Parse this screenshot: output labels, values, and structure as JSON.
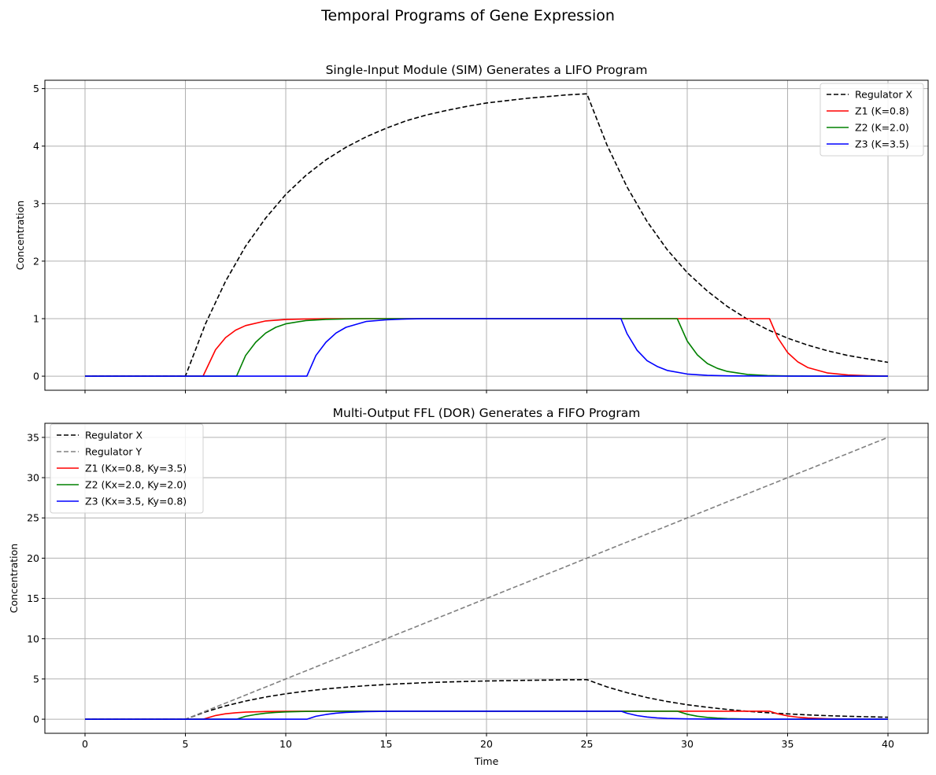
{
  "figure": {
    "title": "Temporal Programs of Gene Expression"
  },
  "chart_data": [
    {
      "type": "line",
      "title": "Single-Input Module (SIM) Generates a LIFO Program",
      "xlabel": "",
      "ylabel": "Concentration",
      "xlim": [
        -2,
        42
      ],
      "ylim": [
        -0.245,
        5.145
      ],
      "xticks": [
        0,
        5,
        10,
        15,
        20,
        25,
        30,
        35,
        40
      ],
      "yticks": [
        0,
        1,
        2,
        3,
        4,
        5
      ],
      "show_xticklabels": false,
      "grid": true,
      "legend_position": "upper right",
      "series": [
        {
          "name": "Regulator X",
          "color": "#000000",
          "dash": "dashed",
          "x": [
            0,
            5,
            6,
            7,
            8,
            9,
            10,
            11,
            12,
            13,
            14,
            15,
            16,
            17,
            18,
            19,
            20,
            21,
            22,
            23,
            24,
            25,
            26,
            27,
            28,
            29,
            30,
            31,
            32,
            33,
            34,
            35,
            36,
            37,
            38,
            39,
            40
          ],
          "y": [
            0,
            0,
            0.91,
            1.65,
            2.26,
            2.75,
            3.16,
            3.49,
            3.76,
            3.98,
            4.16,
            4.31,
            4.44,
            4.54,
            4.62,
            4.69,
            4.75,
            4.79,
            4.83,
            4.86,
            4.89,
            4.91,
            4.02,
            3.29,
            2.69,
            2.2,
            1.8,
            1.48,
            1.21,
            0.99,
            0.81,
            0.66,
            0.54,
            0.44,
            0.36,
            0.3,
            0.24
          ]
        },
        {
          "name": "Z1 (K=0.8)",
          "color": "#ff0000",
          "dash": "solid",
          "x": [
            0,
            5.88,
            6.5,
            7,
            7.5,
            8,
            9,
            10,
            11,
            12,
            34.1,
            34.5,
            35,
            35.5,
            36,
            37,
            38,
            39,
            40
          ],
          "y": [
            0,
            0,
            0.46,
            0.67,
            0.8,
            0.88,
            0.96,
            0.985,
            0.995,
            1,
            1,
            0.67,
            0.41,
            0.25,
            0.15,
            0.055,
            0.02,
            0.008,
            0.003
          ]
        },
        {
          "name": "Z2 (K=2.0)",
          "color": "#008000",
          "dash": "solid",
          "x": [
            0,
            7.55,
            8,
            8.5,
            9,
            9.5,
            10,
            11,
            12,
            13,
            14,
            29.5,
            30,
            30.5,
            31,
            31.5,
            32,
            33,
            34,
            35,
            36,
            40
          ],
          "y": [
            0,
            0,
            0.36,
            0.59,
            0.75,
            0.85,
            0.91,
            0.967,
            0.988,
            0.996,
            1,
            1,
            0.61,
            0.37,
            0.22,
            0.135,
            0.082,
            0.03,
            0.011,
            0.004,
            0.002,
            0
          ]
        },
        {
          "name": "Z3 (K=3.5)",
          "color": "#0000ff",
          "dash": "solid",
          "x": [
            0,
            11.05,
            11.5,
            12,
            12.5,
            13,
            14,
            15,
            16,
            17,
            26.7,
            27,
            27.5,
            28,
            28.5,
            29,
            30,
            31,
            32,
            34,
            40
          ],
          "y": [
            0,
            0,
            0.36,
            0.59,
            0.75,
            0.85,
            0.95,
            0.98,
            0.995,
            1,
            1,
            0.74,
            0.45,
            0.27,
            0.17,
            0.1,
            0.037,
            0.014,
            0.005,
            0.001,
            0
          ]
        }
      ]
    },
    {
      "type": "line",
      "title": "Multi-Output FFL (DOR) Generates a FIFO Program",
      "xlabel": "Time",
      "ylabel": "Concentration",
      "xlim": [
        -2,
        42
      ],
      "ylim": [
        -1.75,
        36.75
      ],
      "xticks": [
        0,
        5,
        10,
        15,
        20,
        25,
        30,
        35,
        40
      ],
      "yticks": [
        0,
        5,
        10,
        15,
        20,
        25,
        30,
        35
      ],
      "show_xticklabels": true,
      "grid": true,
      "legend_position": "upper left",
      "series": [
        {
          "name": "Regulator X",
          "color": "#000000",
          "dash": "dashed",
          "x": [
            0,
            5,
            6,
            7,
            8,
            9,
            10,
            11,
            12,
            13,
            14,
            15,
            16,
            17,
            18,
            19,
            20,
            21,
            22,
            23,
            24,
            25,
            26,
            27,
            28,
            29,
            30,
            31,
            32,
            33,
            34,
            35,
            36,
            37,
            38,
            39,
            40
          ],
          "y": [
            0,
            0,
            0.91,
            1.65,
            2.26,
            2.75,
            3.16,
            3.49,
            3.76,
            3.98,
            4.16,
            4.31,
            4.44,
            4.54,
            4.62,
            4.69,
            4.75,
            4.79,
            4.83,
            4.86,
            4.89,
            4.91,
            4.02,
            3.29,
            2.69,
            2.2,
            1.8,
            1.48,
            1.21,
            0.99,
            0.81,
            0.66,
            0.54,
            0.44,
            0.36,
            0.3,
            0.24
          ]
        },
        {
          "name": "Regulator Y",
          "color": "#808080",
          "dash": "dashed",
          "x": [
            0,
            5,
            40
          ],
          "y": [
            0,
            0,
            35
          ]
        },
        {
          "name": "Z1 (Kx=0.8, Ky=3.5)",
          "color": "#ff0000",
          "dash": "solid",
          "x": [
            0,
            5.88,
            6.5,
            7,
            7.5,
            8,
            9,
            10,
            11,
            12,
            34.1,
            34.5,
            35,
            35.5,
            36,
            37,
            38,
            39,
            40
          ],
          "y": [
            0,
            0,
            0.46,
            0.67,
            0.8,
            0.88,
            0.96,
            0.985,
            0.995,
            1,
            1,
            0.67,
            0.41,
            0.25,
            0.15,
            0.055,
            0.02,
            0.008,
            0.003
          ]
        },
        {
          "name": "Z2 (Kx=2.0, Ky=2.0)",
          "color": "#008000",
          "dash": "solid",
          "x": [
            0,
            7.55,
            8,
            8.5,
            9,
            9.5,
            10,
            11,
            12,
            13,
            14,
            29.5,
            30,
            30.5,
            31,
            31.5,
            32,
            33,
            34,
            35,
            36,
            40
          ],
          "y": [
            0,
            0,
            0.36,
            0.59,
            0.75,
            0.85,
            0.91,
            0.967,
            0.988,
            0.996,
            1,
            1,
            0.61,
            0.37,
            0.22,
            0.135,
            0.082,
            0.03,
            0.011,
            0.004,
            0.002,
            0
          ]
        },
        {
          "name": "Z3 (Kx=3.5, Ky=0.8)",
          "color": "#0000ff",
          "dash": "solid",
          "x": [
            0,
            11.05,
            11.5,
            12,
            12.5,
            13,
            14,
            15,
            16,
            17,
            26.7,
            27,
            27.5,
            28,
            28.5,
            29,
            30,
            31,
            32,
            34,
            40
          ],
          "y": [
            0,
            0,
            0.36,
            0.59,
            0.75,
            0.85,
            0.95,
            0.98,
            0.995,
            1,
            1,
            0.74,
            0.45,
            0.27,
            0.17,
            0.1,
            0.037,
            0.014,
            0.005,
            0.001,
            0
          ]
        }
      ]
    }
  ]
}
